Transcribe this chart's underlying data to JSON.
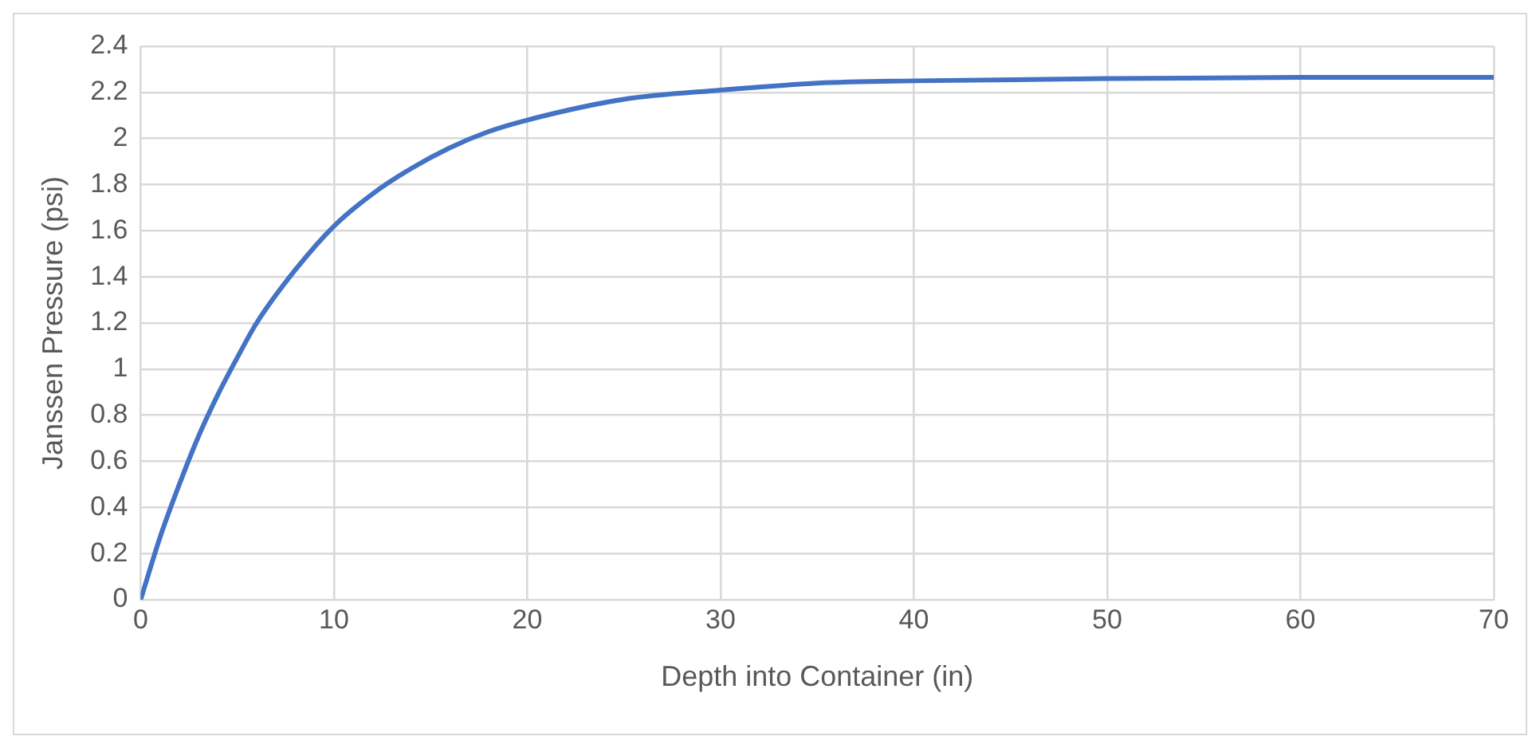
{
  "chart_data": {
    "type": "line",
    "xlabel": "Depth into Container (in)",
    "ylabel": "Janssen Pressure (psi)",
    "x": [
      0,
      1,
      2,
      3,
      4,
      5,
      6,
      8,
      10,
      12,
      14,
      16,
      18,
      20,
      25,
      30,
      35,
      40,
      50,
      60,
      70
    ],
    "series": [
      {
        "color": "#4472c4",
        "values": [
          0,
          0.27,
          0.5,
          0.71,
          0.89,
          1.05,
          1.2,
          1.43,
          1.62,
          1.76,
          1.87,
          1.96,
          2.03,
          2.08,
          2.17,
          2.21,
          2.24,
          2.25,
          2.26,
          2.265,
          2.265
        ]
      }
    ],
    "xlim": [
      0,
      70
    ],
    "xticks": [
      0,
      10,
      20,
      30,
      40,
      50,
      60,
      70
    ],
    "ylim": [
      0,
      2.4
    ],
    "yticks": [
      0,
      0.2,
      0.4,
      0.6,
      0.8,
      1,
      1.2,
      1.4,
      1.6,
      1.8,
      2,
      2.2,
      2.4
    ],
    "grid": true,
    "legend": false,
    "marker": "none",
    "line_style": "solid"
  }
}
